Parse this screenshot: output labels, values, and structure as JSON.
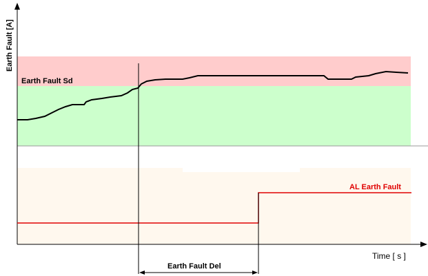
{
  "axes": {
    "y_label": "Earth Fault [A]",
    "x_label": "Time [ s ]"
  },
  "zones": {
    "shutdown_label": "Earth Fault Sd",
    "delay_label": "Earth Fault Del",
    "alarm_label": "AL Earth Fault"
  },
  "colors": {
    "shutdown_zone": "#FFCCCC",
    "normal_zone": "#CCFFCC",
    "lower_zone": "#FFF8EE",
    "measured_signal": "#000000",
    "alarm_signal": "#E00000",
    "alarm_label": "#E00000"
  }
}
